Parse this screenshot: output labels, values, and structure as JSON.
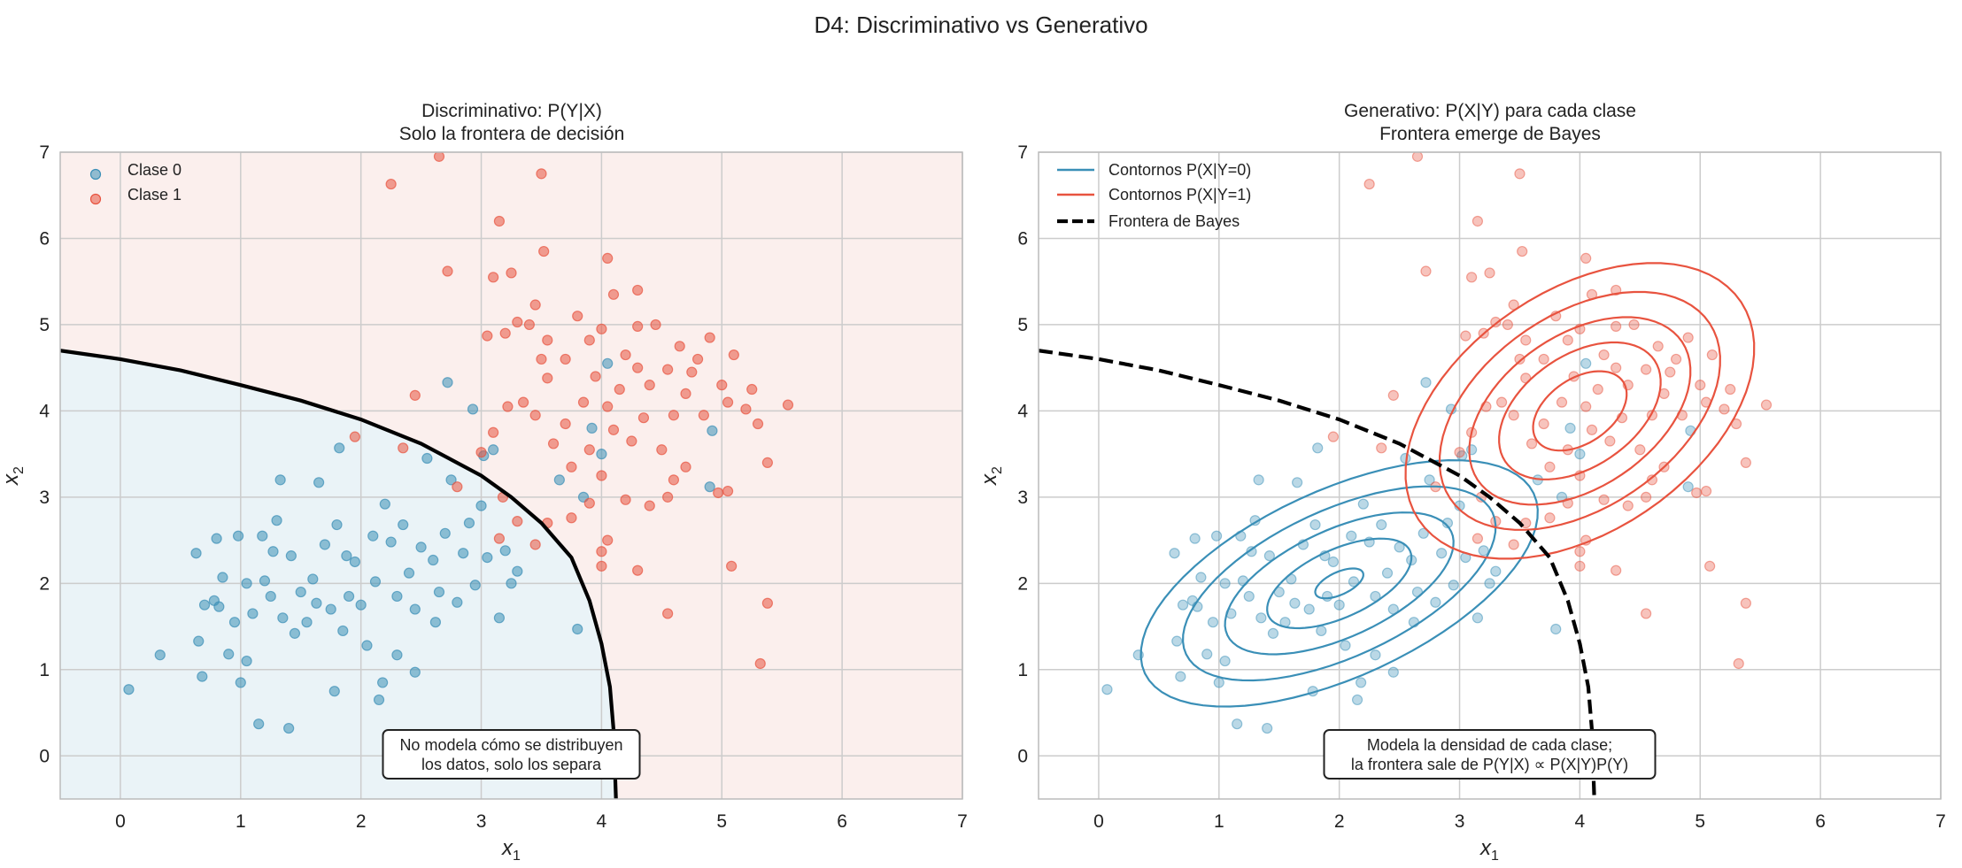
{
  "chart_data": {
    "suptitle": "D4: Discriminativo vs Generativo",
    "classes": [
      {
        "name": "Clase 0",
        "color": "#3a8fb7",
        "points": [
          [
            0.07,
            0.77
          ],
          [
            0.33,
            1.17
          ],
          [
            0.63,
            2.35
          ],
          [
            0.65,
            1.33
          ],
          [
            0.68,
            0.92
          ],
          [
            0.7,
            1.75
          ],
          [
            0.78,
            1.8
          ],
          [
            0.8,
            2.52
          ],
          [
            0.82,
            1.73
          ],
          [
            0.85,
            2.07
          ],
          [
            0.9,
            1.18
          ],
          [
            0.95,
            1.55
          ],
          [
            0.98,
            2.55
          ],
          [
            1.0,
            0.85
          ],
          [
            1.05,
            2.0
          ],
          [
            1.05,
            1.1
          ],
          [
            1.1,
            1.65
          ],
          [
            1.15,
            0.37
          ],
          [
            1.18,
            2.55
          ],
          [
            1.2,
            2.03
          ],
          [
            1.25,
            1.85
          ],
          [
            1.27,
            2.37
          ],
          [
            1.3,
            2.73
          ],
          [
            1.33,
            3.2
          ],
          [
            1.35,
            1.6
          ],
          [
            1.4,
            0.32
          ],
          [
            1.42,
            2.32
          ],
          [
            1.45,
            1.42
          ],
          [
            1.5,
            1.9
          ],
          [
            1.55,
            1.55
          ],
          [
            1.6,
            2.05
          ],
          [
            1.63,
            1.77
          ],
          [
            1.65,
            3.17
          ],
          [
            1.7,
            2.45
          ],
          [
            1.75,
            1.7
          ],
          [
            1.78,
            0.75
          ],
          [
            1.8,
            2.68
          ],
          [
            1.82,
            3.57
          ],
          [
            1.85,
            1.45
          ],
          [
            1.88,
            2.32
          ],
          [
            1.9,
            1.85
          ],
          [
            1.95,
            2.25
          ],
          [
            2.0,
            1.75
          ],
          [
            2.05,
            1.28
          ],
          [
            2.1,
            2.55
          ],
          [
            2.12,
            2.02
          ],
          [
            2.15,
            0.65
          ],
          [
            2.18,
            0.85
          ],
          [
            2.2,
            2.92
          ],
          [
            2.25,
            2.48
          ],
          [
            2.3,
            1.85
          ],
          [
            2.35,
            2.68
          ],
          [
            2.4,
            2.12
          ],
          [
            2.45,
            1.7
          ],
          [
            2.5,
            2.42
          ],
          [
            2.55,
            3.45
          ],
          [
            2.6,
            2.27
          ],
          [
            2.62,
            1.55
          ],
          [
            2.65,
            1.9
          ],
          [
            2.7,
            2.58
          ],
          [
            2.75,
            3.2
          ],
          [
            2.8,
            1.78
          ],
          [
            2.85,
            2.35
          ],
          [
            2.9,
            2.7
          ],
          [
            2.95,
            1.98
          ],
          [
            3.0,
            2.9
          ],
          [
            3.02,
            3.48
          ],
          [
            3.05,
            2.3
          ],
          [
            3.1,
            3.55
          ],
          [
            3.15,
            1.6
          ],
          [
            3.2,
            2.38
          ],
          [
            3.25,
            2.0
          ],
          [
            2.72,
            4.33
          ],
          [
            2.93,
            4.02
          ],
          [
            3.85,
            3.0
          ],
          [
            3.92,
            3.8
          ],
          [
            4.0,
            3.5
          ],
          [
            4.05,
            4.55
          ],
          [
            3.65,
            3.2
          ],
          [
            3.8,
            1.47
          ],
          [
            4.9,
            3.12
          ],
          [
            4.92,
            3.77
          ],
          [
            2.45,
            0.97
          ],
          [
            2.3,
            1.17
          ],
          [
            3.3,
            2.14
          ]
        ]
      },
      {
        "name": "Clase 1",
        "color": "#e8533f",
        "points": [
          [
            2.65,
            6.95
          ],
          [
            2.25,
            6.63
          ],
          [
            3.5,
            6.75
          ],
          [
            3.15,
            6.2
          ],
          [
            3.52,
            5.85
          ],
          [
            4.05,
            5.77
          ],
          [
            2.72,
            5.62
          ],
          [
            3.1,
            5.55
          ],
          [
            3.05,
            4.87
          ],
          [
            3.2,
            4.9
          ],
          [
            3.3,
            5.03
          ],
          [
            3.4,
            5.0
          ],
          [
            3.45,
            5.23
          ],
          [
            3.55,
            4.82
          ],
          [
            3.7,
            4.6
          ],
          [
            3.8,
            5.1
          ],
          [
            3.9,
            4.82
          ],
          [
            4.0,
            4.95
          ],
          [
            4.1,
            5.35
          ],
          [
            4.2,
            4.65
          ],
          [
            4.3,
            4.98
          ],
          [
            4.45,
            5.0
          ],
          [
            4.55,
            4.48
          ],
          [
            4.65,
            4.75
          ],
          [
            4.75,
            4.45
          ],
          [
            4.9,
            4.85
          ],
          [
            5.0,
            4.3
          ],
          [
            5.05,
            4.1
          ],
          [
            5.2,
            4.02
          ],
          [
            5.3,
            3.85
          ],
          [
            5.38,
            3.4
          ],
          [
            5.55,
            4.07
          ],
          [
            5.25,
            4.25
          ],
          [
            4.85,
            3.95
          ],
          [
            4.7,
            4.2
          ],
          [
            4.6,
            3.95
          ],
          [
            4.4,
            4.3
          ],
          [
            4.3,
            4.5
          ],
          [
            4.15,
            4.25
          ],
          [
            4.05,
            4.05
          ],
          [
            3.95,
            4.4
          ],
          [
            3.85,
            4.1
          ],
          [
            3.7,
            3.85
          ],
          [
            3.55,
            4.38
          ],
          [
            3.45,
            3.95
          ],
          [
            3.35,
            4.1
          ],
          [
            3.22,
            4.05
          ],
          [
            3.1,
            3.75
          ],
          [
            3.0,
            3.52
          ],
          [
            3.6,
            3.62
          ],
          [
            3.75,
            3.35
          ],
          [
            3.9,
            3.55
          ],
          [
            4.1,
            3.78
          ],
          [
            4.25,
            3.65
          ],
          [
            4.35,
            3.92
          ],
          [
            4.5,
            3.55
          ],
          [
            4.6,
            3.2
          ],
          [
            4.7,
            3.35
          ],
          [
            4.55,
            3.0
          ],
          [
            4.4,
            2.9
          ],
          [
            4.2,
            2.97
          ],
          [
            4.0,
            3.25
          ],
          [
            3.9,
            2.93
          ],
          [
            3.75,
            2.76
          ],
          [
            3.55,
            2.7
          ],
          [
            3.3,
            2.72
          ],
          [
            3.15,
            2.52
          ],
          [
            2.8,
            3.12
          ],
          [
            3.18,
            3.0
          ],
          [
            3.45,
            2.45
          ],
          [
            4.05,
            2.5
          ],
          [
            4.0,
            2.2
          ],
          [
            4.3,
            2.15
          ],
          [
            4.0,
            2.37
          ],
          [
            4.55,
            1.65
          ],
          [
            5.08,
            2.2
          ],
          [
            5.38,
            1.77
          ],
          [
            5.32,
            1.07
          ],
          [
            4.97,
            3.05
          ],
          [
            5.05,
            3.07
          ],
          [
            2.45,
            4.18
          ],
          [
            1.95,
            3.7
          ],
          [
            2.35,
            3.57
          ],
          [
            3.25,
            5.6
          ],
          [
            4.3,
            5.4
          ],
          [
            3.5,
            4.6
          ],
          [
            4.8,
            4.6
          ],
          [
            5.1,
            4.65
          ]
        ]
      }
    ],
    "boundary": [
      [
        -0.5,
        4.7
      ],
      [
        0,
        4.6
      ],
      [
        0.5,
        4.47
      ],
      [
        1,
        4.3
      ],
      [
        1.5,
        4.12
      ],
      [
        2,
        3.9
      ],
      [
        2.5,
        3.62
      ],
      [
        3,
        3.25
      ],
      [
        3.25,
        3.0
      ],
      [
        3.5,
        2.7
      ],
      [
        3.75,
        2.3
      ],
      [
        3.9,
        1.8
      ],
      [
        4.0,
        1.3
      ],
      [
        4.07,
        0.8
      ],
      [
        4.1,
        0.3
      ],
      [
        4.12,
        -0.5
      ]
    ],
    "gaussians": [
      {
        "name": "Contornos P(X|Y=0)",
        "color": "#3a8fb7",
        "mean": [
          2.0,
          2.0
        ],
        "cov": [
          [
            1.0,
            0.5
          ],
          [
            0.5,
            0.75
          ]
        ],
        "levels": [
          0.2,
          0.6,
          0.95,
          1.3,
          1.65
        ]
      },
      {
        "name": "Contornos P(X|Y=1)",
        "color": "#e8533f",
        "mean": [
          4.0,
          4.0
        ],
        "cov": [
          [
            0.5,
            0.25
          ],
          [
            0.25,
            0.7
          ]
        ],
        "levels": [
          0.55,
          0.95,
          1.3,
          1.65,
          2.05
        ]
      }
    ],
    "xlim": [
      -0.5,
      7
    ],
    "ylim": [
      -0.5,
      7
    ],
    "xticks": [
      "0",
      "1",
      "2",
      "3",
      "4",
      "5",
      "6",
      "7"
    ],
    "yticks": [
      "0",
      "1",
      "2",
      "3",
      "4",
      "5",
      "6",
      "7"
    ],
    "xlabel": "x",
    "xlabel_sub": "1",
    "ylabel": "x",
    "ylabel_sub": "2",
    "grid": true,
    "panels": [
      {
        "type": "scatter",
        "title1": "Discriminativo: P(Y|X)",
        "title2": "Solo la frontera de decisión",
        "legend": [
          "Clase 0",
          "Clase 1"
        ],
        "legend_loc": "top-left",
        "note1": "No modela cómo se distribuyen",
        "note2": "los datos, solo los separa",
        "region_colors": {
          "class0": "#eaf3f7",
          "class1": "#fbefed"
        }
      },
      {
        "type": "scatter",
        "title1": "Generativo: P(X|Y) para cada clase",
        "title2": "Frontera emerge de Bayes",
        "legend": [
          "Contornos P(X|Y=0)",
          "Contornos P(X|Y=1)",
          "Frontera de Bayes"
        ],
        "legend_loc": "top-left",
        "note1": "Modela la densidad de cada clase;",
        "note2": "la frontera sale de P(Y|X)  ∝  P(X|Y)P(Y)"
      }
    ]
  }
}
